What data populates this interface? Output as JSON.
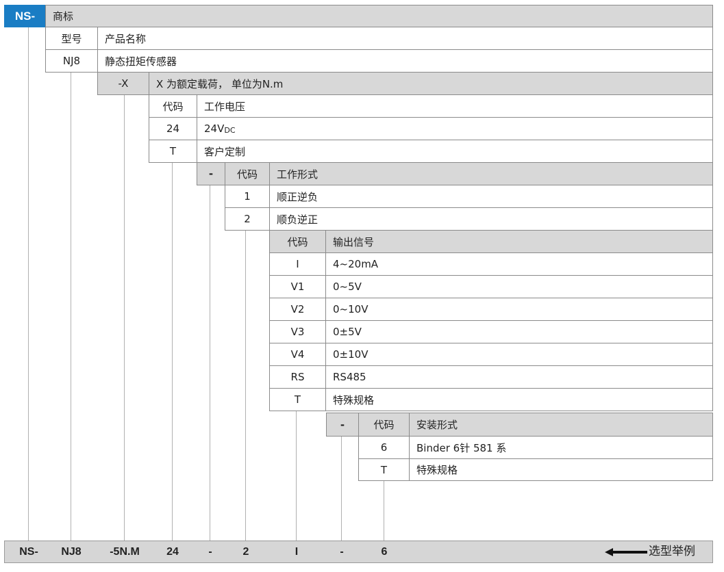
{
  "brand": {
    "code": "NS-",
    "label": "商标"
  },
  "model": {
    "header_code": "型号",
    "header_desc": "产品名称",
    "code": "NJ8",
    "desc": "静态扭矩传感器"
  },
  "load": {
    "code": "-X",
    "desc": "X 为额定载荷， 单位为N.m"
  },
  "voltage": {
    "header_code": "代码",
    "header_desc": "工作电压",
    "rows": [
      {
        "code": "24",
        "desc": "24V",
        "sub": "DC"
      },
      {
        "code": "T",
        "desc": "客户定制"
      }
    ]
  },
  "mode": {
    "sep": "-",
    "header_code": "代码",
    "header_desc": "工作形式",
    "rows": [
      {
        "code": "1",
        "desc": "顺正逆负"
      },
      {
        "code": "2",
        "desc": "顺负逆正"
      }
    ]
  },
  "output": {
    "header_code": "代码",
    "header_desc": "输出信号",
    "rows": [
      {
        "code": "I",
        "desc": "4~20mA"
      },
      {
        "code": "V1",
        "desc": "0~5V"
      },
      {
        "code": "V2",
        "desc": "0~10V"
      },
      {
        "code": "V3",
        "desc": "0±5V"
      },
      {
        "code": "V4",
        "desc": "0±10V"
      },
      {
        "code": "RS",
        "desc": "RS485"
      },
      {
        "code": "T",
        "desc": "特殊规格"
      }
    ]
  },
  "mount": {
    "sep": "-",
    "header_code": "代码",
    "header_desc": "安装形式",
    "rows": [
      {
        "code": "6",
        "desc": "Binder 6针 581 系"
      },
      {
        "code": "T",
        "desc": "特殊规格"
      }
    ]
  },
  "example": {
    "parts": [
      "NS-",
      "NJ8",
      "-5N.M",
      "24",
      "-",
      "2",
      "I",
      "-",
      "6"
    ],
    "label": "选型举例"
  },
  "colors": {
    "accent": "#1a7dc4",
    "header_gray": "#d8d8d8"
  }
}
